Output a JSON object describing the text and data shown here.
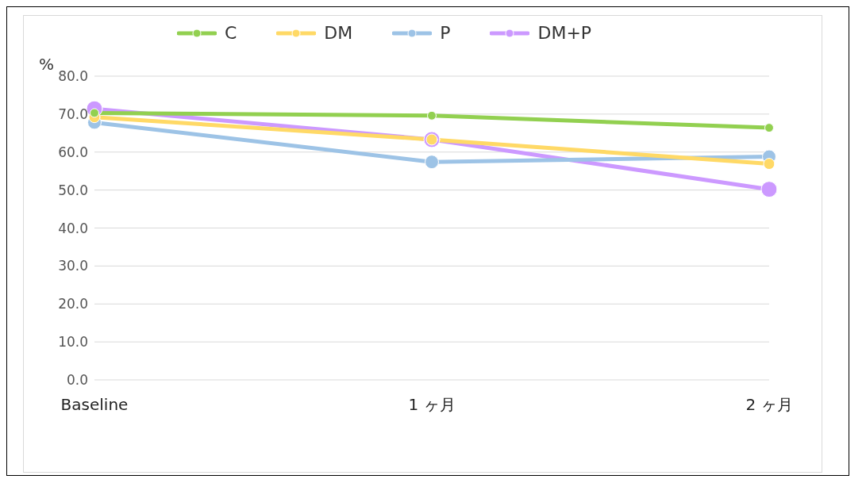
{
  "chart_data": {
    "type": "line",
    "ylabel": "%",
    "categories": [
      "Baseline",
      "1 ヶ月",
      "2 ヶ月"
    ],
    "series": [
      {
        "name": "C",
        "color": "#92d050",
        "values": [
          70.3,
          69.6,
          66.4
        ]
      },
      {
        "name": "DM",
        "color": "#ffd966",
        "values": [
          69.2,
          63.3,
          56.9
        ]
      },
      {
        "name": "P",
        "color": "#9dc3e6",
        "values": [
          67.8,
          57.4,
          58.8
        ]
      },
      {
        "name": "DM+P",
        "color": "#cc99ff",
        "values": [
          71.4,
          63.3,
          50.2
        ]
      }
    ],
    "ylim": [
      0,
      80
    ],
    "yticks": [
      {
        "value": 0,
        "label": "0.0"
      },
      {
        "value": 10,
        "label": "10.0"
      },
      {
        "value": 20,
        "label": "20.0"
      },
      {
        "value": 30,
        "label": "30.0"
      },
      {
        "value": 40,
        "label": "40.0"
      },
      {
        "value": 50,
        "label": "50.0"
      },
      {
        "value": 60,
        "label": "60.0"
      },
      {
        "value": 70,
        "label": "70.0"
      },
      {
        "value": 80,
        "label": "80.0"
      }
    ],
    "grid": "y",
    "legend": "top",
    "marker": "circle",
    "line_style": "solid"
  }
}
